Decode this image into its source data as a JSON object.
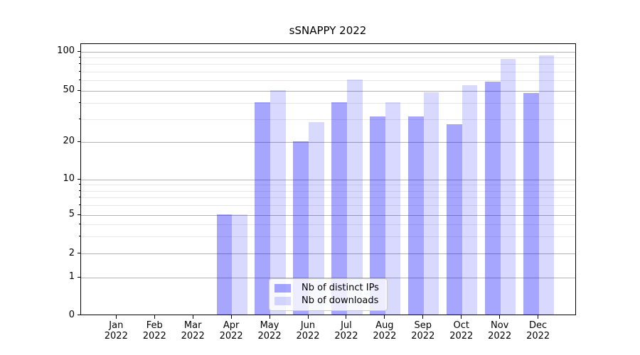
{
  "figure": {
    "title": "sSNAPPY 2022"
  },
  "chart_data": {
    "type": "bar",
    "title": "sSNAPPY 2022",
    "categories": [
      "Jan 2022",
      "Feb 2022",
      "Mar 2022",
      "Apr 2022",
      "May 2022",
      "Jun 2022",
      "Jul 2022",
      "Aug 2022",
      "Sep 2022",
      "Oct 2022",
      "Nov 2022",
      "Dec 2022"
    ],
    "series": [
      {
        "name": "Nb of distinct IPs",
        "color": "rgba(0,0,255,0.35)",
        "values": [
          0,
          0,
          0,
          5,
          40,
          20,
          40,
          31,
          31,
          27,
          58,
          47
        ]
      },
      {
        "name": "Nb of downloads",
        "color": "rgba(0,0,255,0.15)",
        "values": [
          0,
          0,
          0,
          5,
          50,
          28,
          60,
          40,
          48,
          54,
          87,
          93
        ]
      }
    ],
    "xlabel": "",
    "ylabel": "",
    "yscale": "symlog",
    "ylim": [
      0,
      100
    ],
    "y_ticks": [
      0,
      1,
      2,
      5,
      10,
      20,
      50,
      100
    ],
    "y_minor_ticks": [
      3,
      4,
      6,
      7,
      8,
      9,
      30,
      40,
      60,
      70,
      80,
      90
    ],
    "grid": true,
    "legend_position": "lower center",
    "bar_layout": "grouped-pair"
  },
  "colors": {
    "bar_distinct_ips_hex": "#a6a6ff",
    "bar_downloads_hex": "#d9d9ff",
    "grid_major": "#b2b2b2",
    "grid_minor": "#e8e8e8",
    "axis": "#000000",
    "legend_border": "#cccccc",
    "legend_background": "rgba(255,255,255,0.8)",
    "text": "#000000",
    "background": "#ffffff"
  }
}
